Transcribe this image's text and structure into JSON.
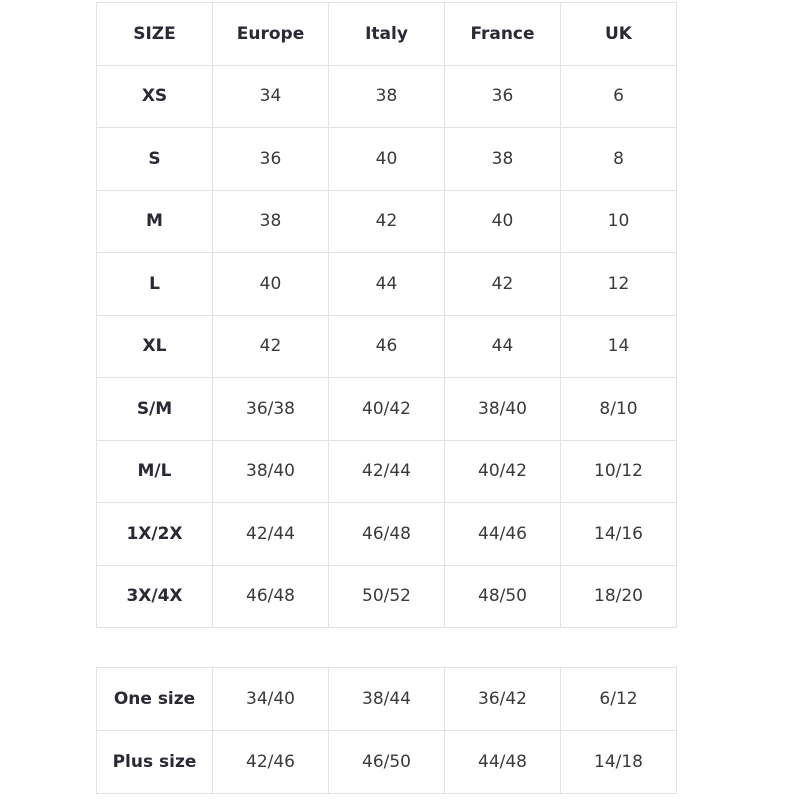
{
  "main_table": {
    "headers": [
      "SIZE",
      "Europe",
      "Italy",
      "France",
      "UK"
    ],
    "rows": [
      [
        "XS",
        "34",
        "38",
        "36",
        "6"
      ],
      [
        "S",
        "36",
        "40",
        "38",
        "8"
      ],
      [
        "M",
        "38",
        "42",
        "40",
        "10"
      ],
      [
        "L",
        "40",
        "44",
        "42",
        "12"
      ],
      [
        "XL",
        "42",
        "46",
        "44",
        "14"
      ],
      [
        "S/M",
        "36/38",
        "40/42",
        "38/40",
        "8/10"
      ],
      [
        "M/L",
        "38/40",
        "42/44",
        "40/42",
        "10/12"
      ],
      [
        "1X/2X",
        "42/44",
        "46/48",
        "44/46",
        "14/16"
      ],
      [
        "3X/4X",
        "46/48",
        "50/52",
        "48/50",
        "18/20"
      ]
    ]
  },
  "extra_table": {
    "rows": [
      [
        "One size",
        "34/40",
        "38/44",
        "36/42",
        "6/12"
      ],
      [
        "Plus size",
        "42/46",
        "46/50",
        "44/48",
        "14/18"
      ]
    ]
  }
}
